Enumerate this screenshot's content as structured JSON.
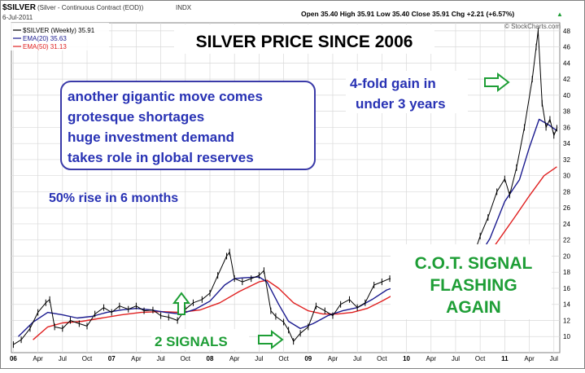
{
  "header": {
    "symbol": "$SILVER",
    "description": "(Silver - Continuous Contract (EOD))",
    "exchange": "INDX",
    "date": "6-Jul-2011",
    "quote": "Open 35.40   High 35.91   Low 35.40   Close 35.91   Chg +2.21 (+6.57%)",
    "quote_arrow": "▲"
  },
  "legend": {
    "price": "$SILVER (Weekly) 35.91",
    "ema20": "EMA(20) 35.63",
    "ema50": "EMA(50) 31.13"
  },
  "credit": "© StockCharts.com",
  "annotations": {
    "bullets": [
      "another gigantic move comes",
      "grotesque shortages",
      "huge investment demand",
      "takes role in global reserves"
    ],
    "rise": "50% rise in 6 months",
    "fourfold": [
      "4-fold gain in",
      "under 3 years"
    ],
    "signals": "2 SIGNALS",
    "cot": [
      "C.O.T. SIGNAL",
      "FLASHING",
      "AGAIN"
    ]
  },
  "colors": {
    "price": "#000000",
    "ema20": "#1b1b8f",
    "ema50": "#e02020",
    "blue_text": "#2832b4",
    "green": "#1e9e36",
    "grid": "#d9d9d9",
    "bg": "#ffffff"
  },
  "chart_data": {
    "type": "line",
    "title": "SILVER PRICE SINCE 2006",
    "y_axis_side": "right",
    "ylim": [
      8,
      49
    ],
    "y_ticks": [
      10,
      12,
      14,
      16,
      18,
      20,
      22,
      24,
      26,
      28,
      30,
      32,
      34,
      36,
      38,
      40,
      42,
      44,
      46,
      48
    ],
    "x_ticks": [
      {
        "label": "06",
        "t": 2006.0,
        "bold": true
      },
      {
        "label": "Apr",
        "t": 2006.25
      },
      {
        "label": "Jul",
        "t": 2006.5
      },
      {
        "label": "Oct",
        "t": 2006.75
      },
      {
        "label": "07",
        "t": 2007.0,
        "bold": true
      },
      {
        "label": "Apr",
        "t": 2007.25
      },
      {
        "label": "Jul",
        "t": 2007.5
      },
      {
        "label": "Oct",
        "t": 2007.75
      },
      {
        "label": "08",
        "t": 2008.0,
        "bold": true
      },
      {
        "label": "Apr",
        "t": 2008.25
      },
      {
        "label": "Jul",
        "t": 2008.5
      },
      {
        "label": "Oct",
        "t": 2008.75
      },
      {
        "label": "09",
        "t": 2009.0,
        "bold": true
      },
      {
        "label": "Apr",
        "t": 2009.25
      },
      {
        "label": "Jul",
        "t": 2009.5
      },
      {
        "label": "Oct",
        "t": 2009.75
      },
      {
        "label": "10",
        "t": 2010.0,
        "bold": true
      },
      {
        "label": "Apr",
        "t": 2010.25
      },
      {
        "label": "Jul",
        "t": 2010.5
      },
      {
        "label": "Oct",
        "t": 2010.75
      },
      {
        "label": "11",
        "t": 2011.0,
        "bold": true
      },
      {
        "label": "Apr",
        "t": 2011.25
      },
      {
        "label": "Jul",
        "t": 2011.5
      }
    ],
    "xlim": [
      2005.98,
      2011.56
    ],
    "series": [
      {
        "name": "$SILVER (Weekly)",
        "points": [
          [
            2006.0,
            9.0
          ],
          [
            2006.08,
            9.6
          ],
          [
            2006.17,
            11.0
          ],
          [
            2006.25,
            13.0
          ],
          [
            2006.33,
            14.2
          ],
          [
            2006.37,
            14.6
          ],
          [
            2006.42,
            11.2
          ],
          [
            2006.5,
            11.0
          ],
          [
            2006.58,
            12.0
          ],
          [
            2006.67,
            11.6
          ],
          [
            2006.75,
            11.3
          ],
          [
            2006.83,
            12.8
          ],
          [
            2006.92,
            13.6
          ],
          [
            2007.0,
            13.0
          ],
          [
            2007.08,
            13.8
          ],
          [
            2007.17,
            13.4
          ],
          [
            2007.25,
            13.8
          ],
          [
            2007.33,
            13.2
          ],
          [
            2007.42,
            13.3
          ],
          [
            2007.5,
            12.6
          ],
          [
            2007.58,
            12.4
          ],
          [
            2007.67,
            12.0
          ],
          [
            2007.75,
            13.4
          ],
          [
            2007.83,
            14.2
          ],
          [
            2007.92,
            14.6
          ],
          [
            2008.0,
            15.4
          ],
          [
            2008.08,
            17.6
          ],
          [
            2008.17,
            20.0
          ],
          [
            2008.2,
            20.5
          ],
          [
            2008.25,
            17.2
          ],
          [
            2008.33,
            16.8
          ],
          [
            2008.42,
            17.2
          ],
          [
            2008.5,
            17.6
          ],
          [
            2008.55,
            18.2
          ],
          [
            2008.62,
            13.2
          ],
          [
            2008.67,
            12.5
          ],
          [
            2008.75,
            11.8
          ],
          [
            2008.8,
            10.8
          ],
          [
            2008.85,
            9.4
          ],
          [
            2008.92,
            10.4
          ],
          [
            2009.0,
            11.2
          ],
          [
            2009.08,
            13.8
          ],
          [
            2009.17,
            13.2
          ],
          [
            2009.25,
            12.6
          ],
          [
            2009.33,
            14.0
          ],
          [
            2009.42,
            14.6
          ],
          [
            2009.5,
            13.6
          ],
          [
            2009.58,
            14.2
          ],
          [
            2009.67,
            16.4
          ],
          [
            2009.75,
            16.8
          ],
          [
            2009.83,
            17.2
          ],
          [
            2009.92,
            16.8
          ],
          [
            2010.0,
            17.2
          ],
          [
            2010.08,
            15.6
          ],
          [
            2010.17,
            17.0
          ],
          [
            2010.25,
            17.6
          ],
          [
            2010.33,
            18.4
          ],
          [
            2010.42,
            18.2
          ],
          [
            2010.5,
            17.8
          ],
          [
            2010.58,
            18.2
          ],
          [
            2010.67,
            19.6
          ],
          [
            2010.75,
            22.5
          ],
          [
            2010.83,
            24.8
          ],
          [
            2010.92,
            28.0
          ],
          [
            2011.0,
            29.6
          ],
          [
            2011.05,
            27.6
          ],
          [
            2011.12,
            31.0
          ],
          [
            2011.2,
            36.0
          ],
          [
            2011.28,
            42.0
          ],
          [
            2011.32,
            46.0
          ],
          [
            2011.34,
            48.0
          ],
          [
            2011.38,
            39.0
          ],
          [
            2011.42,
            36.0
          ],
          [
            2011.46,
            37.0
          ],
          [
            2011.5,
            35.0
          ],
          [
            2011.53,
            35.9
          ]
        ]
      },
      {
        "name": "EMA(20)",
        "points": [
          [
            2006.05,
            10.0
          ],
          [
            2006.2,
            11.8
          ],
          [
            2006.35,
            13.0
          ],
          [
            2006.5,
            12.7
          ],
          [
            2006.65,
            12.3
          ],
          [
            2006.8,
            12.5
          ],
          [
            2006.95,
            13.0
          ],
          [
            2007.1,
            13.3
          ],
          [
            2007.25,
            13.5
          ],
          [
            2007.4,
            13.3
          ],
          [
            2007.55,
            13.0
          ],
          [
            2007.7,
            12.8
          ],
          [
            2007.85,
            13.4
          ],
          [
            2008.0,
            14.4
          ],
          [
            2008.15,
            16.4
          ],
          [
            2008.25,
            17.2
          ],
          [
            2008.35,
            17.3
          ],
          [
            2008.5,
            17.4
          ],
          [
            2008.58,
            16.8
          ],
          [
            2008.7,
            14.0
          ],
          [
            2008.8,
            11.9
          ],
          [
            2008.92,
            11.0
          ],
          [
            2009.05,
            11.6
          ],
          [
            2009.2,
            12.6
          ],
          [
            2009.35,
            13.2
          ],
          [
            2009.5,
            13.6
          ],
          [
            2009.65,
            14.6
          ],
          [
            2009.8,
            15.8
          ],
          [
            2009.95,
            16.4
          ],
          [
            2010.1,
            16.7
          ],
          [
            2010.25,
            17.0
          ],
          [
            2010.4,
            17.5
          ],
          [
            2010.55,
            17.9
          ],
          [
            2010.7,
            19.2
          ],
          [
            2010.85,
            22.2
          ],
          [
            2011.0,
            26.8
          ],
          [
            2011.15,
            29.5
          ],
          [
            2011.25,
            33.5
          ],
          [
            2011.35,
            37.0
          ],
          [
            2011.45,
            36.3
          ],
          [
            2011.53,
            35.6
          ]
        ]
      },
      {
        "name": "EMA(50)",
        "points": [
          [
            2006.2,
            9.6
          ],
          [
            2006.35,
            11.2
          ],
          [
            2006.5,
            11.7
          ],
          [
            2006.7,
            11.9
          ],
          [
            2006.9,
            12.3
          ],
          [
            2007.1,
            12.7
          ],
          [
            2007.3,
            13.0
          ],
          [
            2007.5,
            13.1
          ],
          [
            2007.7,
            13.0
          ],
          [
            2007.9,
            13.3
          ],
          [
            2008.1,
            14.2
          ],
          [
            2008.3,
            15.6
          ],
          [
            2008.5,
            16.8
          ],
          [
            2008.58,
            17.0
          ],
          [
            2008.7,
            16.0
          ],
          [
            2008.85,
            14.2
          ],
          [
            2009.0,
            13.2
          ],
          [
            2009.15,
            12.8
          ],
          [
            2009.3,
            12.8
          ],
          [
            2009.45,
            13.0
          ],
          [
            2009.6,
            13.5
          ],
          [
            2009.75,
            14.4
          ],
          [
            2009.9,
            15.4
          ],
          [
            2010.05,
            16.0
          ],
          [
            2010.2,
            16.4
          ],
          [
            2010.35,
            16.8
          ],
          [
            2010.5,
            17.2
          ],
          [
            2010.65,
            17.9
          ],
          [
            2010.8,
            19.6
          ],
          [
            2010.95,
            22.2
          ],
          [
            2011.1,
            24.8
          ],
          [
            2011.25,
            27.5
          ],
          [
            2011.4,
            30.0
          ],
          [
            2011.53,
            31.1
          ]
        ]
      }
    ]
  }
}
